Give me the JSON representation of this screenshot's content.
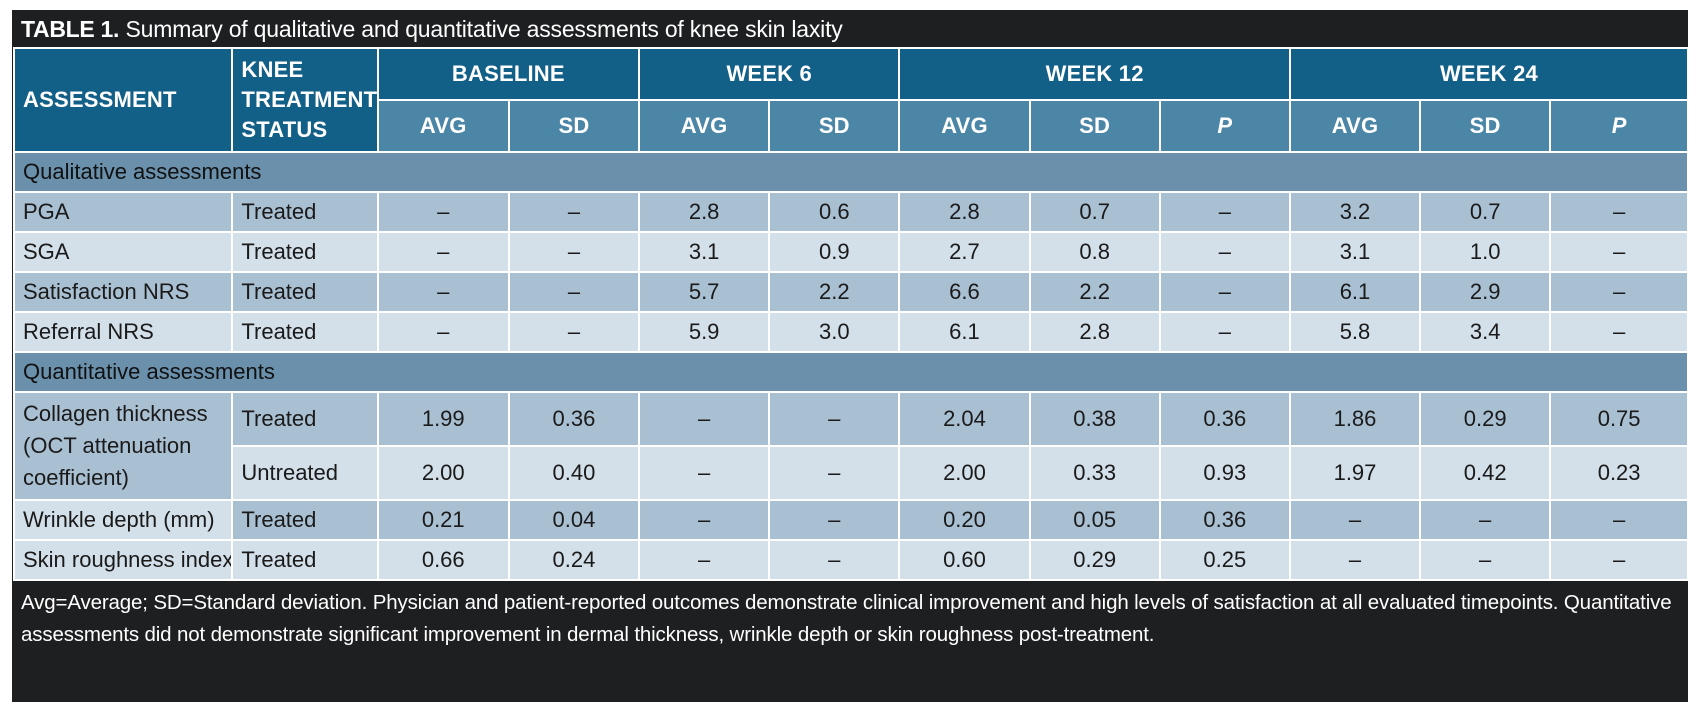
{
  "caption": {
    "label": "TABLE 1.",
    "text": "Summary of qualitative and quantitative assessments of knee skin laxity"
  },
  "header": {
    "assessment": "ASSESSMENT",
    "status": [
      "KNEE",
      "TREATMENT",
      "STATUS"
    ],
    "groups": [
      "BASELINE",
      "WEEK 6",
      "WEEK 12",
      "WEEK 24"
    ],
    "sub": [
      "AVG",
      "SD",
      "AVG",
      "SD",
      "AVG",
      "SD",
      "P",
      "AVG",
      "SD",
      "P"
    ]
  },
  "sections": {
    "qualitative": "Qualitative assessments",
    "quantitative": "Quantitative assessments"
  },
  "qualitative_rows": [
    {
      "assessment": "PGA",
      "status": "Treated",
      "values": [
        "–",
        "–",
        "2.8",
        "0.6",
        "2.8",
        "0.7",
        "–",
        "3.2",
        "0.7",
        "–"
      ]
    },
    {
      "assessment": "SGA",
      "status": "Treated",
      "values": [
        "–",
        "–",
        "3.1",
        "0.9",
        "2.7",
        "0.8",
        "–",
        "3.1",
        "1.0",
        "–"
      ]
    },
    {
      "assessment": "Satisfaction NRS",
      "status": "Treated",
      "values": [
        "–",
        "–",
        "5.7",
        "2.2",
        "6.6",
        "2.2",
        "–",
        "6.1",
        "2.9",
        "–"
      ]
    },
    {
      "assessment": "Referral NRS",
      "status": "Treated",
      "values": [
        "–",
        "–",
        "5.9",
        "3.0",
        "6.1",
        "2.8",
        "–",
        "5.8",
        "3.4",
        "–"
      ]
    }
  ],
  "collagen": {
    "assessment_lines": [
      "Collagen thickness",
      "(OCT attenuation",
      "coefficient)"
    ],
    "rows": [
      {
        "status": "Treated",
        "values": [
          "1.99",
          "0.36",
          "–",
          "–",
          "2.04",
          "0.38",
          "0.36",
          "1.86",
          "0.29",
          "0.75"
        ]
      },
      {
        "status": "Untreated",
        "values": [
          "2.00",
          "0.40",
          "–",
          "–",
          "2.00",
          "0.33",
          "0.93",
          "1.97",
          "0.42",
          "0.23"
        ]
      }
    ]
  },
  "quantitative_rows": [
    {
      "assessment": "Wrinkle depth (mm)",
      "status": "Treated",
      "values": [
        "0.21",
        "0.04",
        "–",
        "–",
        "0.20",
        "0.05",
        "0.36",
        "–",
        "–",
        "–"
      ]
    },
    {
      "assessment": "Skin roughness index",
      "status": "Treated",
      "values": [
        "0.66",
        "0.24",
        "–",
        "–",
        "0.60",
        "0.29",
        "0.25",
        "–",
        "–",
        "–"
      ]
    }
  ],
  "footnote": {
    "line1": "Avg=Average; SD=Standard deviation. Physician and patient-reported outcomes demonstrate clinical improvement and high levels of satisfaction at all evaluated timepoints. Quantitative",
    "line2": "assessments did not demonstrate significant improvement in dermal thickness, wrinkle depth or skin roughness post-treatment."
  }
}
